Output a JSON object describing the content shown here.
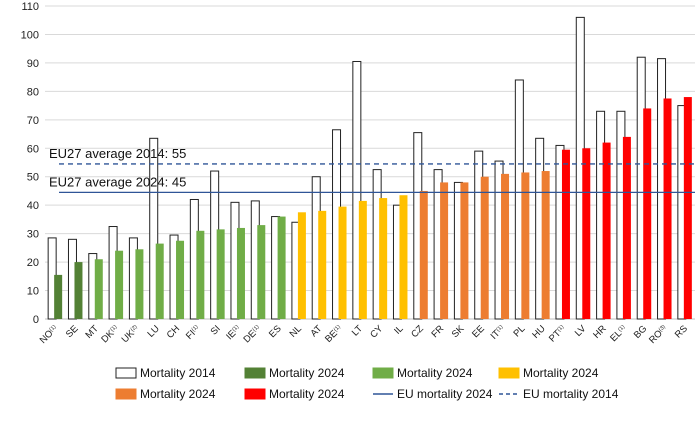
{
  "chart_data": {
    "type": "bar",
    "title": "",
    "xlabel": "",
    "ylabel": "",
    "ylim": [
      0,
      110
    ],
    "yticks": [
      0,
      10,
      20,
      30,
      40,
      50,
      60,
      70,
      80,
      90,
      100,
      110
    ],
    "grid": "horizontal",
    "legend_position": "bottom",
    "categories": [
      "NO(1)",
      "SE",
      "MT",
      "DK(1)",
      "UK(2)",
      "LU",
      "CH",
      "FI(1)",
      "SI",
      "IE(1)",
      "DE(1)",
      "ES",
      "NL",
      "AT",
      "BE(1)",
      "LT",
      "CY",
      "IL",
      "CZ",
      "FR",
      "SK",
      "EE",
      "IT(1)",
      "PL",
      "HU",
      "PT(1)",
      "LV",
      "HR",
      "EL(1)",
      "BG",
      "RO(3)",
      "RS"
    ],
    "series": [
      {
        "name": "Mortality 2014",
        "values": [
          28.5,
          28,
          23,
          32.5,
          28.5,
          63.5,
          29.5,
          42,
          52,
          41,
          41.5,
          36,
          34,
          50,
          66.5,
          90.5,
          52.5,
          40,
          65.5,
          52.5,
          48,
          59,
          55.5,
          84,
          63.5,
          61,
          106,
          73,
          73,
          92,
          91.5,
          75
        ]
      },
      {
        "name": "Mortality 2024",
        "values": [
          15.5,
          20,
          21,
          24,
          24.5,
          26.5,
          27.5,
          31,
          31.5,
          32,
          33,
          36,
          37.5,
          38,
          39.5,
          41.5,
          42.5,
          43.5,
          45,
          48,
          48,
          50,
          51,
          51.5,
          52,
          59.5,
          60,
          62,
          64,
          74,
          77.5,
          78
        ]
      }
    ],
    "bar_colors_2024": [
      "#538135",
      "#538135",
      "#70AD47",
      "#70AD47",
      "#70AD47",
      "#70AD47",
      "#70AD47",
      "#70AD47",
      "#70AD47",
      "#70AD47",
      "#70AD47",
      "#70AD47",
      "#FFC000",
      "#FFC000",
      "#FFC000",
      "#FFC000",
      "#FFC000",
      "#FFC000",
      "#ED7D31",
      "#ED7D31",
      "#ED7D31",
      "#ED7D31",
      "#ED7D31",
      "#ED7D31",
      "#ED7D31",
      "#FF0000",
      "#FF0000",
      "#FF0000",
      "#FF0000",
      "#FF0000",
      "#FF0000",
      "#FF0000"
    ],
    "reference_lines": [
      {
        "name": "EU mortality 2024",
        "value": 44.5,
        "style": "solid",
        "color": "#2F5597",
        "label": "EU27 average 2024: 45"
      },
      {
        "name": "EU mortality 2014",
        "value": 54.5,
        "style": "dashed",
        "color": "#2F5597",
        "label": "EU27 average 2014: 55"
      }
    ],
    "legend": [
      {
        "label": "Mortality 2014",
        "kind": "box",
        "color": "#ffffff"
      },
      {
        "label": "Mortality 2024",
        "kind": "box",
        "color": "#538135"
      },
      {
        "label": "Mortality 2024",
        "kind": "box",
        "color": "#70AD47"
      },
      {
        "label": "Mortality 2024",
        "kind": "box",
        "color": "#FFC000"
      },
      {
        "label": "Mortality 2024",
        "kind": "box",
        "color": "#ED7D31"
      },
      {
        "label": "Mortality 2024",
        "kind": "box",
        "color": "#FF0000"
      },
      {
        "label": "EU mortality 2024",
        "kind": "solid-line",
        "color": "#2F5597"
      },
      {
        "label": "EU mortality 2014",
        "kind": "dashed-line",
        "color": "#2F5597"
      }
    ]
  }
}
